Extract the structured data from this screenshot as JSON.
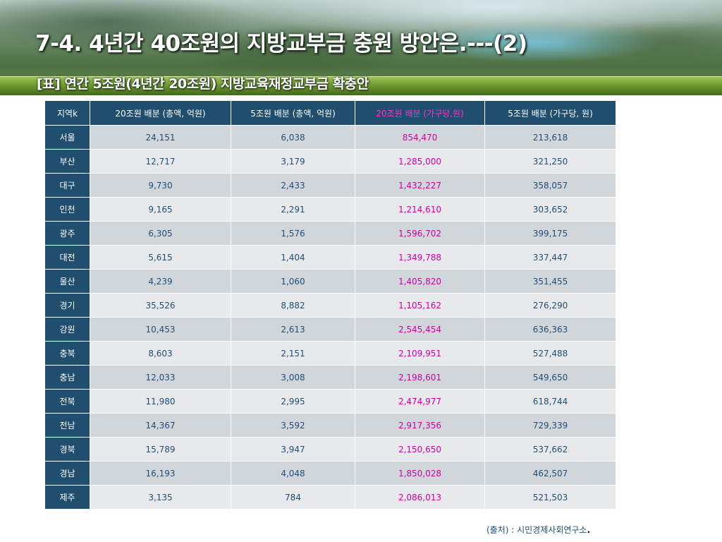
{
  "header": {
    "title": "7-4. 4년간 40조원의 지방교부금 충원 방안은.---(2)",
    "subtitle": "[표] 연간 5조원(4년간 20조원) 지방교육재정교부금 확충안"
  },
  "table": {
    "columns": [
      "지역k",
      "20조원 배분 (총액, 억원)",
      "5조원 배분 (총액, 억원)",
      "20조원 배분 (가구당,원)",
      "5조원 배분 (가구당, 원)"
    ],
    "rows": [
      [
        "서울",
        "24,151",
        "6,038",
        "854,470",
        "213,618"
      ],
      [
        "부산",
        "12,717",
        "3,179",
        "1,285,000",
        "321,250"
      ],
      [
        "대구",
        "9,730",
        "2,433",
        "1,432,227",
        "358,057"
      ],
      [
        "인천",
        "9,165",
        "2,291",
        "1,214,610",
        "303,652"
      ],
      [
        "광주",
        "6,305",
        "1,576",
        "1,596,702",
        "399,175"
      ],
      [
        "대전",
        "5,615",
        "1,404",
        "1,349,788",
        "337,447"
      ],
      [
        "울산",
        "4,239",
        "1,060",
        "1,405,820",
        "351,455"
      ],
      [
        "경기",
        "35,526",
        "8,882",
        "1,105,162",
        "276,290"
      ],
      [
        "강원",
        "10,453",
        "2,613",
        "2,545,454",
        "636,363"
      ],
      [
        "충북",
        "8,603",
        "2,151",
        "2,109,951",
        "527,488"
      ],
      [
        "충남",
        "12,033",
        "3,008",
        "2,198,601",
        "549,650"
      ],
      [
        "전북",
        "11,980",
        "2,995",
        "2,474,977",
        "618,744"
      ],
      [
        "전남",
        "14,367",
        "3,592",
        "2,917,356",
        "729,339"
      ],
      [
        "경북",
        "15,789",
        "3,947",
        "2,150,650",
        "537,662"
      ],
      [
        "경남",
        "16,193",
        "4,048",
        "1,850,028",
        "462,507"
      ],
      [
        "제주",
        "3,135",
        "784",
        "2,086,013",
        "521,503"
      ]
    ]
  },
  "footer": {
    "source": "(출처) : 시민경제사회연구소",
    "dot": "."
  },
  "colors": {
    "header_bg": "#1f4e6e",
    "highlight_text": "#cc00aa",
    "value_text": "#1f4e79"
  }
}
